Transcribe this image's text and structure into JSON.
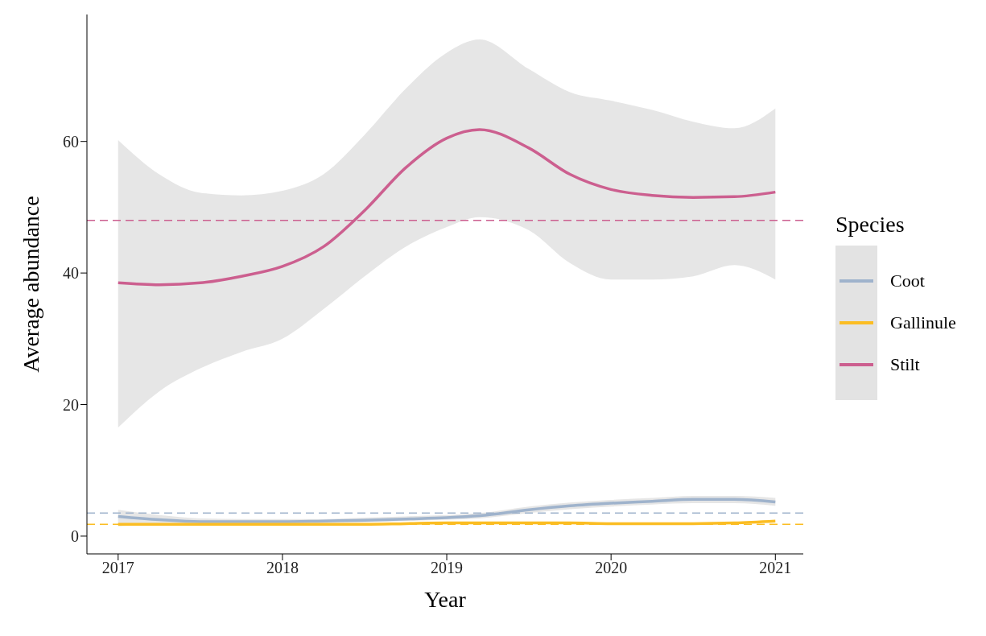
{
  "chart_data": {
    "type": "line",
    "xlabel": "Year",
    "ylabel": "Average abundance",
    "legend_title": "Species",
    "x": [
      2017,
      2017.25,
      2017.5,
      2017.75,
      2018,
      2018.25,
      2018.5,
      2018.75,
      2019,
      2019.2,
      2019.5,
      2019.75,
      2020,
      2020.25,
      2020.5,
      2020.75,
      2021
    ],
    "series": [
      {
        "name": "Coot",
        "color": "#9fb3cc",
        "values": [
          3,
          2.5,
          2.2,
          2.2,
          2.2,
          2.3,
          2.4,
          2.6,
          2.8,
          3.1,
          4,
          4.6,
          5,
          5.3,
          5.6,
          5.6,
          5.2
        ],
        "lower": [
          1.5,
          1.8,
          1.8,
          1.9,
          1.9,
          2,
          2.1,
          2.3,
          2.5,
          2.7,
          3.5,
          4.1,
          4.5,
          4.8,
          5,
          5,
          4.6
        ],
        "upper": [
          4,
          3.2,
          2.7,
          2.6,
          2.6,
          2.6,
          2.8,
          3,
          3.2,
          3.5,
          4.5,
          5.1,
          5.5,
          5.8,
          6.1,
          6.1,
          5.8
        ]
      },
      {
        "name": "Gallinule",
        "color": "#fbbd23",
        "values": [
          1.8,
          1.8,
          1.8,
          1.8,
          1.8,
          1.8,
          1.8,
          1.9,
          2,
          2,
          2,
          2,
          1.9,
          1.9,
          1.9,
          2,
          2.3
        ]
      },
      {
        "name": "Stilt",
        "color": "#cc5f8f",
        "values": [
          38.5,
          38.2,
          38.5,
          39.5,
          41,
          44,
          49.5,
          56,
          60.5,
          61.8,
          59,
          55,
          52.7,
          51.8,
          51.5,
          51.6,
          52.3
        ],
        "lower": [
          16.5,
          22,
          25.5,
          28,
          30,
          34.5,
          39.5,
          44,
          47,
          48.5,
          46.5,
          41.5,
          39,
          39,
          39.5,
          41.2,
          39
        ],
        "upper": [
          60.2,
          55,
          52.2,
          51.8,
          52.5,
          55,
          61,
          68,
          73.5,
          75.5,
          71,
          67.5,
          66.2,
          64.8,
          63,
          62,
          65
        ]
      }
    ],
    "xlim": [
      2016.81,
      2021.17
    ],
    "xticks": [
      2017,
      2018,
      2019,
      2020,
      2021
    ],
    "ylim": [
      -2.7,
      79.3
    ],
    "yticks": [
      0,
      20,
      40,
      60
    ],
    "ref_lines": [
      {
        "axis": "y",
        "value": 48,
        "color": "#cc5f8f",
        "line_style": "dashed"
      },
      {
        "axis": "y",
        "value": 3.5,
        "color": "#9fb3cc",
        "line_style": "dashed"
      },
      {
        "axis": "y",
        "value": 1.8,
        "color": "#fbbd23",
        "line_style": "dashed"
      }
    ],
    "legend": "right",
    "grid": false,
    "marker": "none",
    "line_style": "solid"
  }
}
